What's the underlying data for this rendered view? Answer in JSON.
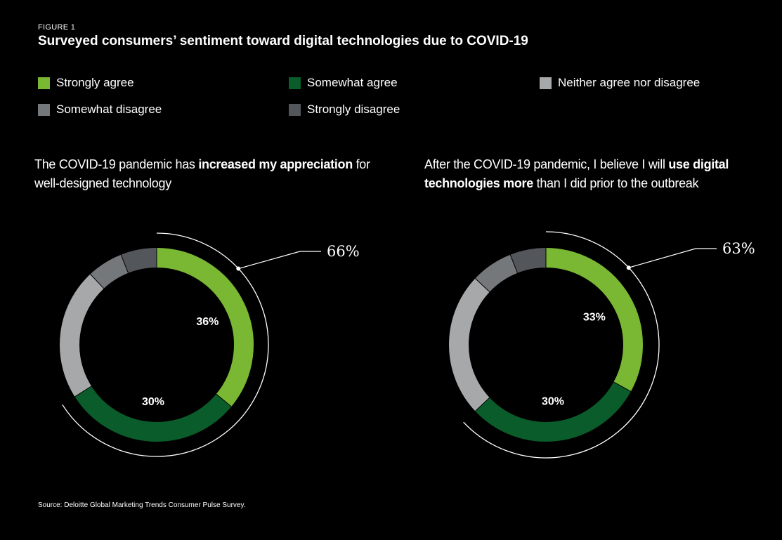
{
  "header": {
    "figure_label": "FIGURE 1",
    "title": "Surveyed consumers’ sentiment toward digital technologies due to COVID-19"
  },
  "colors": {
    "background": "#000000",
    "strongly_agree": "#7ab733",
    "somewhat_agree": "#0a5c2a",
    "neither": "#a7a8aa",
    "somewhat_disagree": "#75787b",
    "strongly_disagree": "#53565a",
    "bracket": "#ffffff"
  },
  "legend": [
    {
      "label": "Strongly agree",
      "color": "#7ab733"
    },
    {
      "label": "Somewhat agree",
      "color": "#0a5c2a"
    },
    {
      "label": "Neither agree nor disagree",
      "color": "#a7a8aa"
    },
    {
      "label": "Somewhat disagree",
      "color": "#75787b"
    },
    {
      "label": "Strongly disagree",
      "color": "#53565a"
    }
  ],
  "chart_data": [
    {
      "type": "pie",
      "variant": "donut",
      "title_parts": [
        {
          "text": "The COVID-19 pandemic has ",
          "bold": false
        },
        {
          "text": "increased my appreciation",
          "bold": true
        },
        {
          "text": " for well-designed technology",
          "bold": false
        }
      ],
      "categories": [
        "Strongly agree",
        "Somewhat agree",
        "Neither agree nor disagree",
        "Somewhat disagree",
        "Strongly disagree"
      ],
      "values": [
        36,
        30,
        22,
        6,
        6
      ],
      "unit": "%",
      "labeled_values": {
        "Strongly agree": "36%",
        "Somewhat agree": "30%"
      },
      "total_agree": "66%"
    },
    {
      "type": "pie",
      "variant": "donut",
      "title_parts": [
        {
          "text": "After the COVID-19 pandemic, I believe I will ",
          "bold": false
        },
        {
          "text": "use digital technologies more",
          "bold": true
        },
        {
          "text": " than I did prior to the outbreak",
          "bold": false
        }
      ],
      "categories": [
        "Strongly agree",
        "Somewhat agree",
        "Neither agree nor disagree",
        "Somewhat disagree",
        "Strongly disagree"
      ],
      "values": [
        33,
        30,
        24,
        7,
        6
      ],
      "unit": "%",
      "labeled_values": {
        "Strongly agree": "33%",
        "Somewhat agree": "30%"
      },
      "total_agree": "63%"
    }
  ],
  "source": "Source: Deloitte Global Marketing Trends Consumer Pulse Survey."
}
